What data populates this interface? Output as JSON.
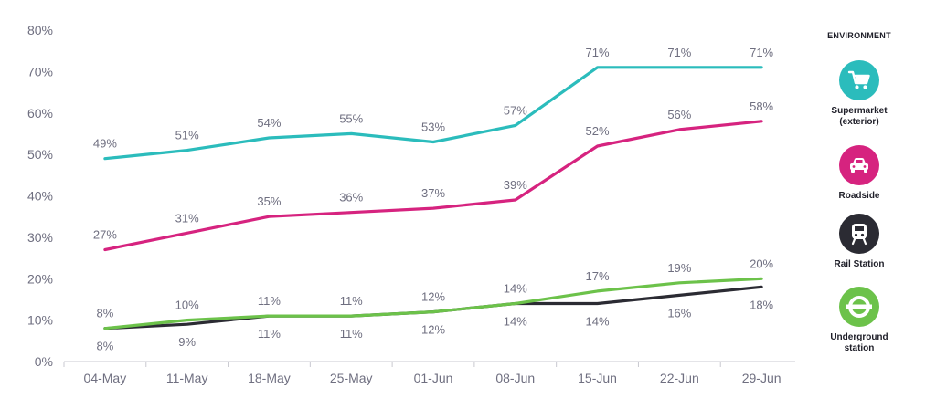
{
  "chart_data": {
    "type": "line",
    "title": "",
    "xlabel": "",
    "ylabel": "",
    "ylim": [
      0,
      80
    ],
    "yticks": [
      "0%",
      "10%",
      "20%",
      "30%",
      "40%",
      "50%",
      "60%",
      "70%",
      "80%"
    ],
    "ytick_values": [
      0,
      10,
      20,
      30,
      40,
      50,
      60,
      70,
      80
    ],
    "categories": [
      "04-May",
      "11-May",
      "18-May",
      "25-May",
      "01-Jun",
      "08-Jun",
      "15-Jun",
      "22-Jun",
      "29-Jun"
    ],
    "grid": false,
    "legend_title": "ENVIRONMENT",
    "legend_position": "right",
    "series": [
      {
        "name": "Supermarket (exterior)",
        "name_lines": [
          "Supermarket",
          "(exterior)"
        ],
        "color": "#2bbcbc",
        "icon": "shopping-cart-icon",
        "values": [
          49,
          51,
          54,
          55,
          53,
          57,
          71,
          71,
          71
        ],
        "labels": [
          "49%",
          "51%",
          "54%",
          "55%",
          "53%",
          "57%",
          "71%",
          "71%",
          "71%"
        ]
      },
      {
        "name": "Roadside",
        "name_lines": [
          "Roadside"
        ],
        "color": "#d6237f",
        "icon": "car-icon",
        "values": [
          27,
          31,
          35,
          36,
          37,
          39,
          52,
          56,
          58
        ],
        "labels": [
          "27%",
          "31%",
          "35%",
          "36%",
          "37%",
          "39%",
          "52%",
          "56%",
          "58%"
        ]
      },
      {
        "name": "Rail Station",
        "name_lines": [
          "Rail Station"
        ],
        "color": "#2b2b33",
        "icon": "train-icon",
        "values": [
          8,
          9,
          11,
          11,
          12,
          14,
          14,
          16,
          18
        ],
        "labels": [
          "8%",
          "9%",
          "11%",
          "11%",
          "12%",
          "14%",
          "14%",
          "16%",
          "18%"
        ]
      },
      {
        "name": "Underground station",
        "name_lines": [
          "Underground",
          "station"
        ],
        "color": "#6cc24a",
        "icon": "underground-roundel-icon",
        "values": [
          8,
          10,
          11,
          11,
          12,
          14,
          17,
          19,
          20
        ],
        "labels": [
          "8%",
          "10%",
          "11%",
          "11%",
          "12%",
          "14%",
          "17%",
          "19%",
          "20%"
        ]
      }
    ]
  }
}
